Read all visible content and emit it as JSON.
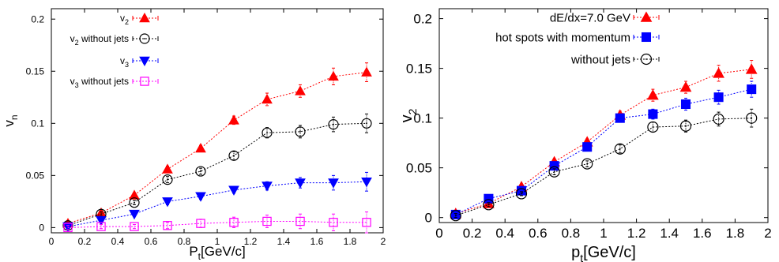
{
  "chart_data": [
    {
      "type": "scatter",
      "title": "",
      "xlabel_main": "P",
      "xlabel_sub": "t",
      "xlabel_unit": "[GeV/c]",
      "ylabel_main": "v",
      "ylabel_sub": "n",
      "xlim": [
        0,
        2
      ],
      "ylim": [
        -0.005,
        0.21
      ],
      "x_ticks": [
        0,
        0.2,
        0.4,
        0.6,
        0.8,
        1,
        1.2,
        1.4,
        1.6,
        1.8,
        2
      ],
      "x_tick_labels": [
        "0",
        "0.2",
        "0.4",
        "0.6",
        "0.8",
        "1",
        "1.2",
        "1.4",
        "1.6",
        "1.8",
        "2"
      ],
      "y_ticks": [
        0,
        0.05,
        0.1,
        0.15,
        0.2
      ],
      "y_tick_labels": [
        "0",
        "0.05",
        "0.1",
        "0.15",
        "0.2"
      ],
      "legend_position": "top-left",
      "grid": false,
      "x": [
        0.1,
        0.3,
        0.5,
        0.7,
        0.9,
        1.1,
        1.3,
        1.5,
        1.7,
        1.9
      ],
      "series": [
        {
          "name_main": "v",
          "name_sub": "2",
          "name_rest": "",
          "marker": "triangle-up",
          "filled": true,
          "color": "#ff0000",
          "values": [
            0.004,
            0.014,
            0.031,
            0.056,
            0.076,
            0.103,
            0.123,
            0.131,
            0.145,
            0.149
          ],
          "err": [
            0.002,
            0.002,
            0.002,
            0.003,
            0.003,
            0.004,
            0.006,
            0.006,
            0.008,
            0.009
          ]
        },
        {
          "name_main": "v",
          "name_sub": "2",
          "name_rest": " without jets",
          "marker": "circle",
          "filled": false,
          "color": "#000000",
          "values": [
            0.002,
            0.013,
            0.024,
            0.046,
            0.054,
            0.069,
            0.091,
            0.092,
            0.099,
            0.1
          ],
          "err": [
            0.002,
            0.002,
            0.002,
            0.003,
            0.003,
            0.004,
            0.005,
            0.006,
            0.007,
            0.009
          ]
        },
        {
          "name_main": "v",
          "name_sub": "3",
          "name_rest": "",
          "marker": "triangle-down",
          "filled": true,
          "color": "#0000ff",
          "values": [
            0.001,
            0.007,
            0.013,
            0.025,
            0.03,
            0.036,
            0.04,
            0.043,
            0.043,
            0.044
          ],
          "err": [
            0.002,
            0.002,
            0.002,
            0.003,
            0.003,
            0.003,
            0.004,
            0.005,
            0.007,
            0.009
          ]
        },
        {
          "name_main": "v",
          "name_sub": "3",
          "name_rest": " without jets",
          "marker": "square",
          "filled": false,
          "color": "#ff00ff",
          "values": [
            0.0,
            0.001,
            0.001,
            0.002,
            0.004,
            0.005,
            0.006,
            0.006,
            0.005,
            0.005
          ],
          "err": [
            0.002,
            0.002,
            0.002,
            0.003,
            0.004,
            0.005,
            0.006,
            0.007,
            0.008,
            0.01
          ]
        }
      ]
    },
    {
      "type": "scatter",
      "title": "",
      "xlabel_main": "p",
      "xlabel_sub": "t",
      "xlabel_unit": "[GeV/c]",
      "ylabel_main": "v",
      "ylabel_sub": "2",
      "xlim": [
        0,
        2
      ],
      "ylim": [
        -0.005,
        0.21
      ],
      "x_ticks": [
        0,
        0.2,
        0.4,
        0.6,
        0.8,
        1,
        1.2,
        1.4,
        1.6,
        1.8,
        2
      ],
      "x_tick_labels": [
        "0",
        "0.2",
        "0.4",
        "0.6",
        "0.8",
        "1",
        "1.2",
        "1.4",
        "1.6",
        "1.8",
        "2"
      ],
      "y_ticks": [
        0,
        0.05,
        0.1,
        0.15,
        0.2
      ],
      "y_tick_labels": [
        "0",
        "0.05",
        "0.1",
        "0.15",
        "0.2"
      ],
      "legend_position": "top-right",
      "grid": false,
      "x": [
        0.1,
        0.3,
        0.5,
        0.7,
        0.9,
        1.1,
        1.3,
        1.5,
        1.7,
        1.9
      ],
      "series": [
        {
          "name_main": "dE/dx=7.0 GeV",
          "name_sub": "",
          "name_rest": "",
          "marker": "triangle-up",
          "filled": true,
          "color": "#ff0000",
          "values": [
            0.004,
            0.014,
            0.031,
            0.056,
            0.076,
            0.103,
            0.123,
            0.131,
            0.145,
            0.149
          ],
          "err": [
            0.002,
            0.002,
            0.002,
            0.003,
            0.003,
            0.004,
            0.006,
            0.006,
            0.008,
            0.009
          ]
        },
        {
          "name_main": "hot spots with momentum",
          "name_sub": "",
          "name_rest": "",
          "marker": "square",
          "filled": true,
          "color": "#0000ff",
          "values": [
            0.003,
            0.019,
            0.027,
            0.052,
            0.071,
            0.1,
            0.104,
            0.114,
            0.121,
            0.129
          ],
          "err": [
            0.002,
            0.002,
            0.002,
            0.003,
            0.003,
            0.004,
            0.005,
            0.006,
            0.007,
            0.008
          ]
        },
        {
          "name_main": "without jets",
          "name_sub": "",
          "name_rest": "",
          "marker": "circle",
          "filled": false,
          "color": "#000000",
          "values": [
            0.002,
            0.013,
            0.024,
            0.046,
            0.054,
            0.069,
            0.091,
            0.092,
            0.099,
            0.1
          ],
          "err": [
            0.002,
            0.002,
            0.002,
            0.003,
            0.003,
            0.004,
            0.005,
            0.006,
            0.007,
            0.009
          ]
        }
      ]
    }
  ]
}
